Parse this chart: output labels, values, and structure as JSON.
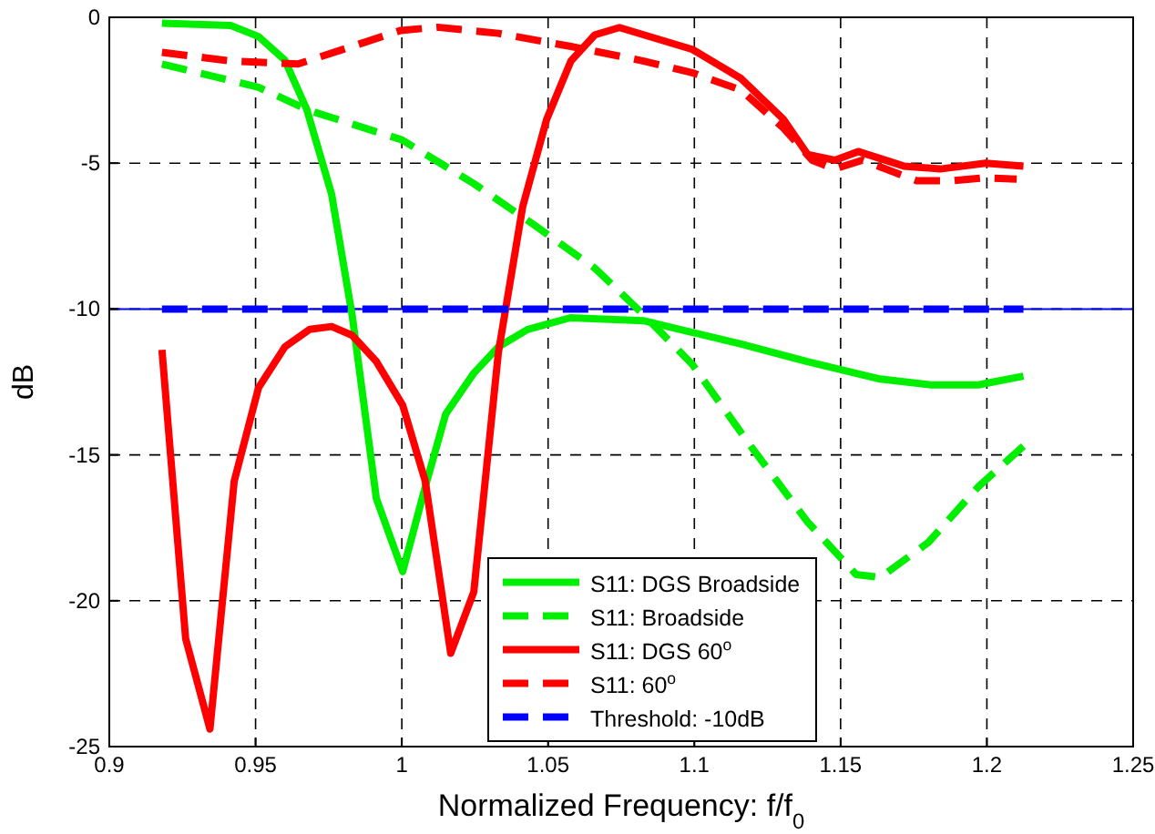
{
  "chart_data": {
    "type": "line",
    "xlabel": "Normalized Frequency: f/f$_{0}$",
    "ylabel": "dB",
    "xlim": [
      0.9,
      1.25
    ],
    "xticks": [
      0.9,
      0.95,
      1,
      1.05,
      1.1,
      1.15,
      1.2,
      1.25
    ],
    "ylim": [
      -25,
      0
    ],
    "yticks": [
      -25,
      -20,
      -15,
      -10,
      -5,
      0
    ],
    "grid": true,
    "legend": "bottom right",
    "marker": "none",
    "ref_lines": [
      {
        "axis": "y",
        "value": -10,
        "color": "#0000ff"
      }
    ],
    "series": [
      {
        "name": "S11: DGS Broadside",
        "color": "#00ee00",
        "line_style": "solid",
        "x": [
          0.918,
          0.9415,
          0.951,
          0.96,
          0.9675,
          0.976,
          0.983,
          0.9913,
          1.0003,
          1.008,
          1.015,
          1.0246,
          1.033,
          1.043,
          1.0576,
          1.0825,
          1.0993,
          1.116,
          1.1386,
          1.1635,
          1.181,
          1.197,
          1.2125
        ],
        "values": [
          -0.2,
          -0.28,
          -0.66,
          -1.47,
          -3.16,
          -6.07,
          -10.2,
          -16.5,
          -19,
          -16.1,
          -13.6,
          -12.2,
          -11.3,
          -10.7,
          -10.3,
          -10.4,
          -10.8,
          -11.2,
          -11.8,
          -12.4,
          -12.6,
          -12.6,
          -12.3
        ]
      },
      {
        "name": "S11: Broadside",
        "color": "#00ee00",
        "line_style": "dashed",
        "x": [
          0.918,
          0.951,
          0.9685,
          1.0,
          1.0246,
          1.045,
          1.066,
          1.0827,
          1.0993,
          1.12,
          1.1387,
          1.1553,
          1.1636,
          1.18,
          1.197,
          1.2125
        ],
        "values": [
          -1.6,
          -2.4,
          -3.2,
          -4.2,
          -5.7,
          -7.1,
          -8.6,
          -10.2,
          -11.9,
          -14.8,
          -17.3,
          -19.1,
          -19.2,
          -18,
          -16.1,
          -14.7
        ]
      },
      {
        "name": "S11: DGS 60$^{o}$",
        "color": "#ff0000",
        "line_style": "solid",
        "x": [
          0.918,
          0.9261,
          0.9344,
          0.9427,
          0.951,
          0.96,
          0.9685,
          0.976,
          0.983,
          0.9913,
          1.0003,
          1.008,
          1.0167,
          1.0246,
          1.033,
          1.0413,
          1.0495,
          1.0578,
          1.066,
          1.0744,
          1.0993,
          1.116,
          1.1305,
          1.1387,
          1.148,
          1.156,
          1.1716,
          1.184,
          1.1995,
          1.2125
        ],
        "values": [
          -11.4,
          -21.3,
          -24.4,
          -15.9,
          -12.7,
          -11.3,
          -10.7,
          -10.6,
          -10.9,
          -11.8,
          -13.3,
          -15.9,
          -21.8,
          -19.7,
          -11.5,
          -6.5,
          -3.5,
          -1.5,
          -0.6,
          -0.35,
          -1.1,
          -2.1,
          -3.5,
          -4.7,
          -4.9,
          -4.6,
          -5.1,
          -5.2,
          -5,
          -5.1
        ]
      },
      {
        "name": "S11: 60$^{o}$",
        "color": "#ff0000",
        "line_style": "dashed",
        "x": [
          0.918,
          0.9415,
          0.9645,
          0.983,
          0.9996,
          1.0121,
          1.033,
          1.0578,
          1.0827,
          1.0993,
          1.116,
          1.1305,
          1.1403,
          1.148,
          1.1574,
          1.176,
          1.1885,
          1.1995,
          1.2102
        ],
        "values": [
          -1.2,
          -1.5,
          -1.6,
          -1,
          -0.45,
          -0.34,
          -0.55,
          -1,
          -1.5,
          -1.9,
          -2.5,
          -3.8,
          -4.9,
          -5.2,
          -4.9,
          -5.6,
          -5.6,
          -5.5,
          -5.55
        ]
      },
      {
        "name": "Threshold: -10dB",
        "color": "#0000ff",
        "line_style": "dashed",
        "x": [
          0.918,
          1.2125
        ],
        "values": [
          -10,
          -10
        ]
      }
    ]
  }
}
